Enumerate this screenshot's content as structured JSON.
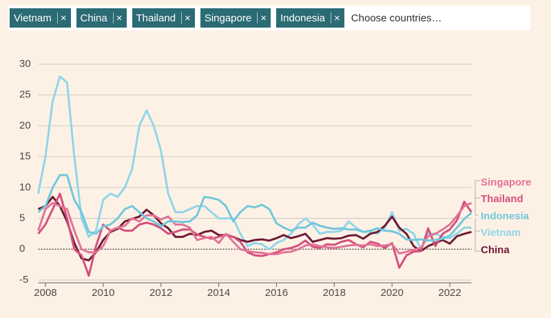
{
  "selector": {
    "remove_icon": "×",
    "placeholder": "Choose countries…"
  },
  "chart_data": {
    "type": "line",
    "x": [
      2007.75,
      2008,
      2008.25,
      2008.5,
      2008.75,
      2009,
      2009.25,
      2009.5,
      2009.75,
      2010,
      2010.25,
      2010.5,
      2010.75,
      2011,
      2011.25,
      2011.5,
      2011.75,
      2012,
      2012.25,
      2012.5,
      2012.75,
      2013,
      2013.25,
      2013.5,
      2013.75,
      2014,
      2014.25,
      2014.5,
      2014.75,
      2015,
      2015.25,
      2015.5,
      2015.75,
      2016,
      2016.25,
      2016.5,
      2016.75,
      2017,
      2017.25,
      2017.5,
      2017.75,
      2018,
      2018.25,
      2018.5,
      2018.75,
      2019,
      2019.25,
      2019.5,
      2019.75,
      2020,
      2020.25,
      2020.5,
      2020.75,
      2021,
      2021.25,
      2021.5,
      2021.75,
      2022,
      2022.25,
      2022.5,
      2022.75
    ],
    "series": [
      {
        "name": "Vietnam",
        "color": "#8fd6e8",
        "values": [
          9,
          15,
          24,
          28,
          27,
          15,
          5,
          2,
          3,
          8,
          9,
          8.5,
          10,
          13,
          20,
          22.5,
          20,
          16,
          9,
          6,
          6,
          6.5,
          7,
          7,
          6,
          5,
          5,
          5,
          2.5,
          0.5,
          1,
          0.8,
          0,
          1,
          1.5,
          2.5,
          4,
          5,
          4,
          2.5,
          2.8,
          2.8,
          3,
          4.5,
          3.5,
          2.8,
          2.8,
          2.5,
          3.5,
          6,
          3,
          3.3,
          2.5,
          0,
          2.5,
          2.5,
          2,
          1.8,
          2.5,
          3.5,
          3.5
        ]
      },
      {
        "name": "China",
        "color": "#6e1a36",
        "values": [
          6.5,
          7,
          8.5,
          7,
          4.5,
          1,
          -1.5,
          -1.8,
          -0.5,
          1.5,
          2.8,
          3.3,
          4.5,
          4.9,
          5.3,
          6.4,
          5.5,
          4.2,
          3.4,
          2,
          2,
          2.5,
          2.3,
          2.8,
          3,
          2.3,
          2.3,
          2,
          1.5,
          1.2,
          1.5,
          1.6,
          1.4,
          1.8,
          2.3,
          1.8,
          2.1,
          2.5,
          1.2,
          1.5,
          1.8,
          1.7,
          1.8,
          2.2,
          2.3,
          1.7,
          2.5,
          2.8,
          3.8,
          5.3,
          3.5,
          2.5,
          0.5,
          -0.3,
          0.5,
          1,
          1.5,
          0.9,
          2.1,
          2.5,
          2.8
        ]
      },
      {
        "name": "Thailand",
        "color": "#d4507c",
        "values": [
          2.5,
          4,
          6.5,
          9,
          5,
          0,
          -1,
          -4.3,
          0.5,
          4,
          3,
          3.5,
          3,
          3,
          4,
          4.3,
          4,
          3.4,
          2.5,
          2.8,
          3.2,
          3.2,
          2.4,
          2,
          1.7,
          2,
          2.4,
          2,
          1.2,
          -0.5,
          -1,
          -1.1,
          -0.8,
          -0.5,
          0,
          0.2,
          0.6,
          1.4,
          0.4,
          0.2,
          0.8,
          0.7,
          1.2,
          1.5,
          0.8,
          0.3,
          1.2,
          0.9,
          0.2,
          1,
          -3,
          -1,
          -0.4,
          -0.3,
          3.4,
          0.5,
          2.5,
          3.2,
          4.7,
          7.7,
          6
        ]
      },
      {
        "name": "Singapore",
        "color": "#e27396",
        "values": [
          3,
          6.5,
          7.5,
          7,
          6.5,
          3,
          0,
          -0.5,
          -0.5,
          0.5,
          3,
          3.5,
          3.8,
          5,
          4.5,
          5.5,
          5.5,
          4.8,
          5.3,
          4,
          4,
          3.5,
          1.5,
          1.8,
          2,
          1,
          2.5,
          1.2,
          0,
          -0.3,
          -0.5,
          -0.6,
          -0.8,
          -0.8,
          -0.5,
          -0.4,
          0,
          0.6,
          0.8,
          0.5,
          0.3,
          0.2,
          0.4,
          0.6,
          0.7,
          0.6,
          0.8,
          0.5,
          0.6,
          0.8,
          -0.7,
          -0.4,
          -0.1,
          0.2,
          2.1,
          2.5,
          3.2,
          4,
          5.4,
          7,
          7.5
        ]
      },
      {
        "name": "Indonesia",
        "color": "#72c7db",
        "values": [
          6,
          7,
          10,
          12,
          12,
          8,
          6,
          2.8,
          2.5,
          3.7,
          4,
          5,
          6.5,
          7,
          6,
          5,
          4.5,
          3.7,
          4.5,
          4.5,
          4.4,
          4.5,
          5.5,
          8.5,
          8.3,
          8,
          7,
          4.5,
          6,
          7,
          6.8,
          7.2,
          6.5,
          4.2,
          3.5,
          3,
          3.5,
          3.5,
          4.3,
          3.8,
          3.5,
          3.3,
          3.4,
          3.2,
          3.2,
          2.8,
          3,
          3.4,
          3,
          2.9,
          2.5,
          1.6,
          1.5,
          1.6,
          1.4,
          1.5,
          1.7,
          2.2,
          3.5,
          4.9,
          5.9
        ]
      }
    ],
    "xlim": [
      2007.75,
      2022.75
    ],
    "xticks": [
      2008,
      2010,
      2012,
      2014,
      2016,
      2018,
      2020,
      2022
    ],
    "ylim": [
      -5,
      31
    ],
    "yticks": [
      -5,
      0,
      5,
      10,
      15,
      20,
      25,
      30
    ],
    "grid": true
  }
}
